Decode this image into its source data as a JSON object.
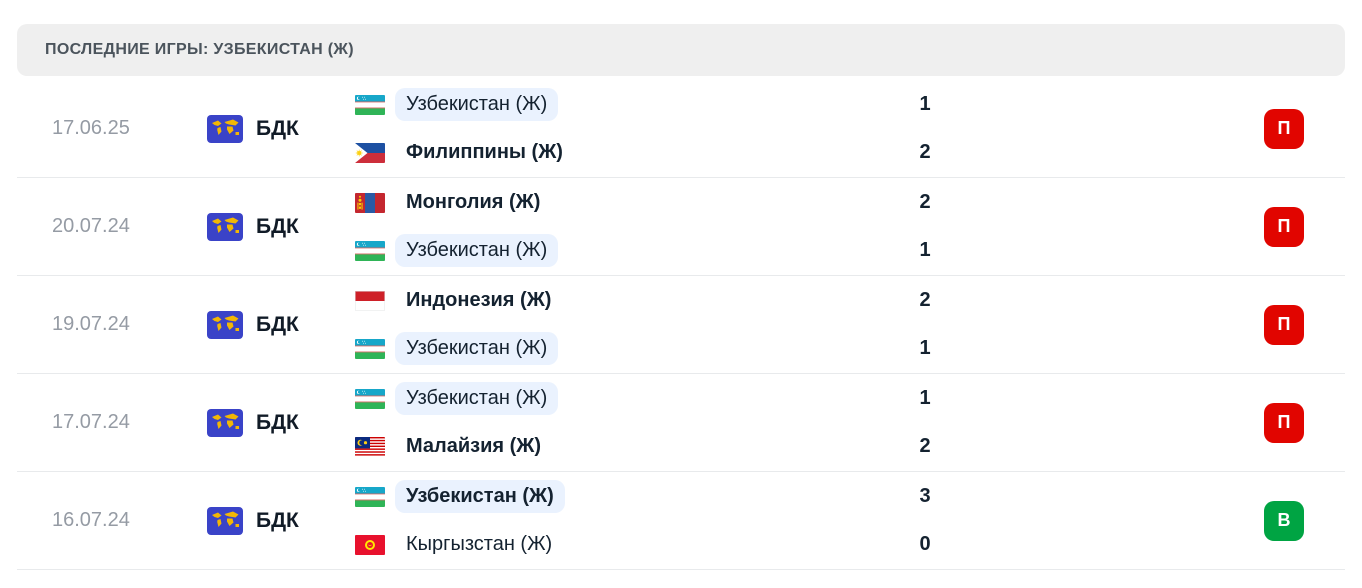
{
  "header": {
    "title": "ПОСЛЕДНИЕ ИГРЫ: УЗБЕКИСТАН (Ж)"
  },
  "colors": {
    "header_bg": "#efefef",
    "highlight_pill": "#eaf2fe",
    "loss_badge": "#e10500",
    "win_badge": "#00a443",
    "comp_icon_bg": "#3a43c8",
    "comp_icon_map": "#f2b705"
  },
  "matches": [
    {
      "date": "17.06.25",
      "competition": {
        "code": "БДК",
        "icon": "world-map-icon"
      },
      "home": {
        "name": "Узбекистан (Ж)",
        "flag": "uzbekistan",
        "score": "1",
        "highlight": true,
        "bold": false
      },
      "away": {
        "name": "Филиппины (Ж)",
        "flag": "philippines",
        "score": "2",
        "highlight": false,
        "bold": true
      },
      "result": {
        "label": "П",
        "type": "loss"
      }
    },
    {
      "date": "20.07.24",
      "competition": {
        "code": "БДК",
        "icon": "world-map-icon"
      },
      "home": {
        "name": "Монголия (Ж)",
        "flag": "mongolia",
        "score": "2",
        "highlight": false,
        "bold": true
      },
      "away": {
        "name": "Узбекистан (Ж)",
        "flag": "uzbekistan",
        "score": "1",
        "highlight": true,
        "bold": false
      },
      "result": {
        "label": "П",
        "type": "loss"
      }
    },
    {
      "date": "19.07.24",
      "competition": {
        "code": "БДК",
        "icon": "world-map-icon"
      },
      "home": {
        "name": "Индонезия (Ж)",
        "flag": "indonesia",
        "score": "2",
        "highlight": false,
        "bold": true
      },
      "away": {
        "name": "Узбекистан (Ж)",
        "flag": "uzbekistan",
        "score": "1",
        "highlight": true,
        "bold": false
      },
      "result": {
        "label": "П",
        "type": "loss"
      }
    },
    {
      "date": "17.07.24",
      "competition": {
        "code": "БДК",
        "icon": "world-map-icon"
      },
      "home": {
        "name": "Узбекистан (Ж)",
        "flag": "uzbekistan",
        "score": "1",
        "highlight": true,
        "bold": false
      },
      "away": {
        "name": "Малайзия (Ж)",
        "flag": "malaysia",
        "score": "2",
        "highlight": false,
        "bold": true
      },
      "result": {
        "label": "П",
        "type": "loss"
      }
    },
    {
      "date": "16.07.24",
      "competition": {
        "code": "БДК",
        "icon": "world-map-icon"
      },
      "home": {
        "name": "Узбекистан (Ж)",
        "flag": "uzbekistan",
        "score": "3",
        "highlight": true,
        "bold": true
      },
      "away": {
        "name": "Кыргызстан (Ж)",
        "flag": "kyrgyzstan",
        "score": "0",
        "highlight": false,
        "bold": false
      },
      "result": {
        "label": "В",
        "type": "win"
      }
    }
  ]
}
